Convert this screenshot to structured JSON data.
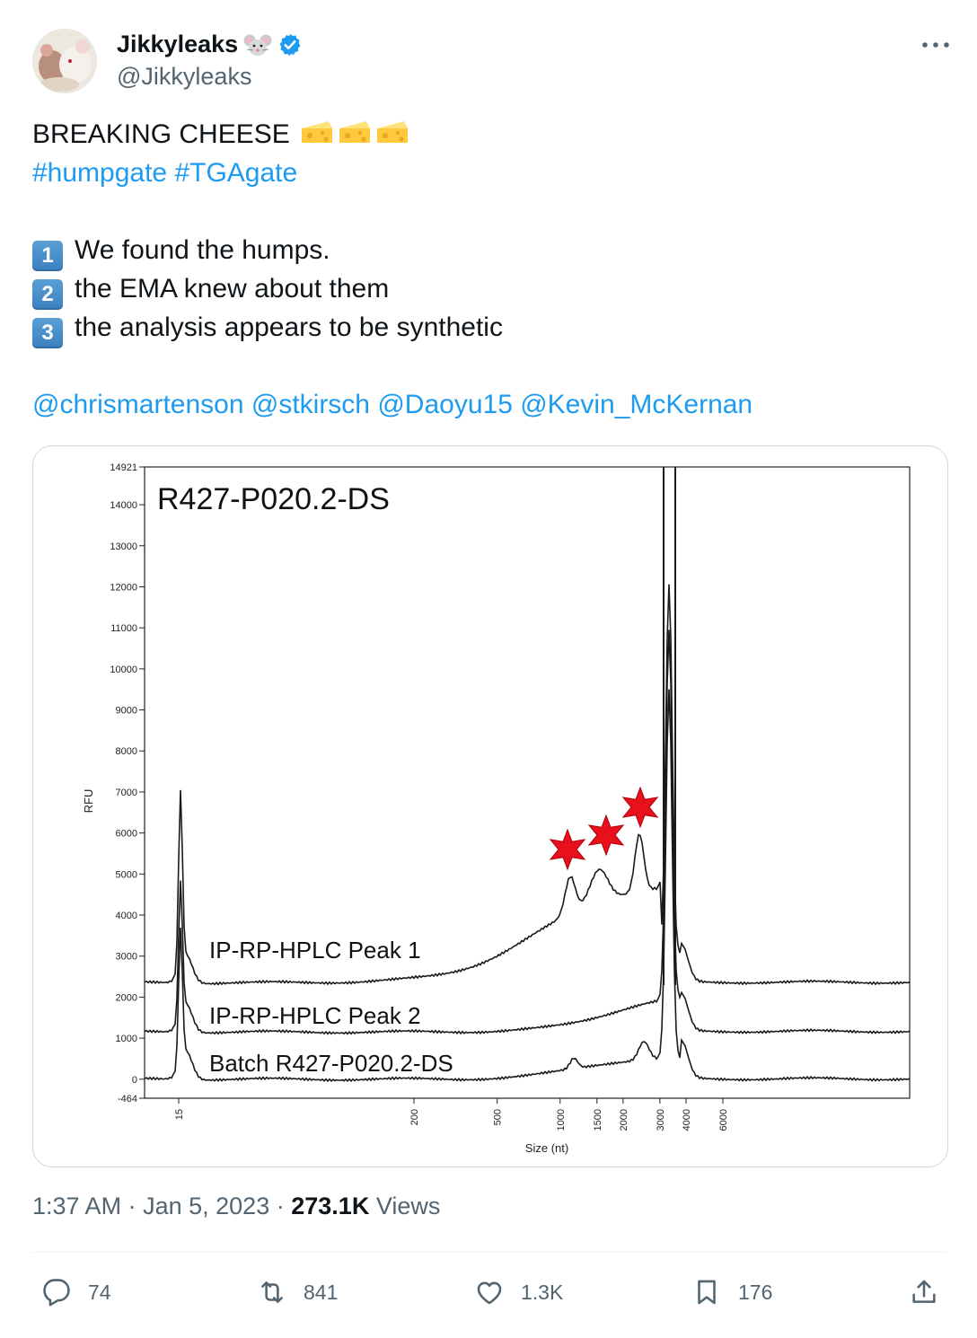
{
  "author": {
    "display_name": "Jikkyleaks",
    "handle": "@Jikkyleaks",
    "verified": true,
    "emoji": "rat-face-icon"
  },
  "tweet": {
    "headline": "BREAKING CHEESE",
    "headline_emoji": "cheese-wedge-icon",
    "hashtags": "#humpgate #TGAgate",
    "points": [
      {
        "num": "1",
        "text": "We found the humps."
      },
      {
        "num": "2",
        "text": "the EMA knew about them"
      },
      {
        "num": "3",
        "text": "the analysis appears to be synthetic"
      }
    ],
    "mentions": "@chrismartenson @stkirsch @Daoyu15 @Kevin_McKernan"
  },
  "meta": {
    "time": "1:37 AM",
    "sep": "·",
    "date": "Jan 5, 2023",
    "views_count": "273.1K",
    "views_label": "Views"
  },
  "actions": {
    "replies": "74",
    "reposts": "841",
    "likes": "1.3K",
    "bookmarks": "176"
  },
  "colors": {
    "link": "#1d9bf0",
    "text": "#0f1419",
    "muted": "#536471",
    "verified": "#1d9bf0",
    "star": "#e8101a"
  },
  "chart_data": {
    "type": "line",
    "title": "R427-P020.2-DS",
    "xlabel": "Size (nt)",
    "ylabel": "RFU",
    "x_scale": "log",
    "yticks": [
      14921,
      14000,
      13000,
      12000,
      11000,
      10000,
      9000,
      8000,
      7000,
      6000,
      5000,
      4000,
      3000,
      2000,
      1000,
      0,
      -464
    ],
    "ylim": [
      -464,
      14921
    ],
    "xticks": [
      "15",
      "200",
      "500",
      "1000",
      "1500",
      "2000",
      "3000",
      "4000",
      "6000"
    ],
    "series": [
      {
        "name": "IP-RP-HPLC  Peak 1",
        "baseline": 2350,
        "humps": [
          4950,
          5400,
          6000
        ]
      },
      {
        "name": "IP-RP-HPLC  Peak 2",
        "baseline": 1150
      },
      {
        "name": "Batch R427-P020.2-DS",
        "baseline": 0
      }
    ],
    "annotations": "three red stars over humps"
  }
}
